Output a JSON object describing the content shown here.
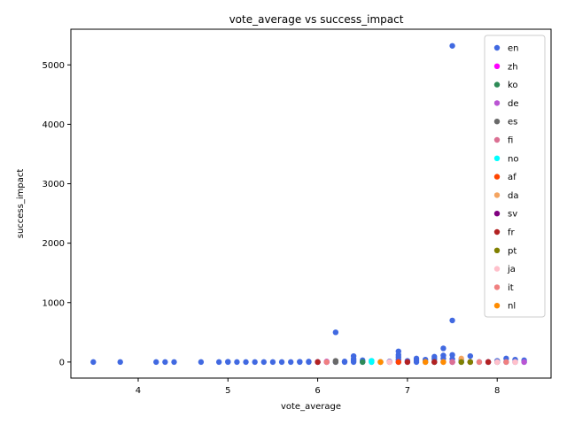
{
  "chart_data": {
    "type": "scatter",
    "title": "vote_average vs success_impact",
    "xlabel": "vote_average",
    "ylabel": "success_impact",
    "xlim": [
      3.25,
      8.6
    ],
    "ylim": [
      -270,
      5600
    ],
    "xticks": [
      4,
      5,
      6,
      7,
      8
    ],
    "yticks": [
      0,
      1000,
      2000,
      3000,
      4000,
      5000
    ],
    "grid": false,
    "legend_position": "top-right",
    "series": [
      {
        "name": "en",
        "color": "#4169e1",
        "points": [
          [
            3.5,
            0
          ],
          [
            3.8,
            0
          ],
          [
            4.2,
            0
          ],
          [
            4.3,
            0
          ],
          [
            4.4,
            0
          ],
          [
            4.7,
            0
          ],
          [
            4.9,
            0
          ],
          [
            5.0,
            0
          ],
          [
            5.0,
            5
          ],
          [
            5.1,
            0
          ],
          [
            5.2,
            0
          ],
          [
            5.3,
            0
          ],
          [
            5.4,
            0
          ],
          [
            5.5,
            0
          ],
          [
            5.6,
            0
          ],
          [
            5.7,
            0
          ],
          [
            5.8,
            0
          ],
          [
            5.8,
            5
          ],
          [
            5.9,
            0
          ],
          [
            5.9,
            8
          ],
          [
            6.0,
            0
          ],
          [
            6.1,
            0
          ],
          [
            6.2,
            0
          ],
          [
            6.2,
            500
          ],
          [
            6.3,
            0
          ],
          [
            6.3,
            10
          ],
          [
            6.4,
            0
          ],
          [
            6.4,
            20
          ],
          [
            6.4,
            50
          ],
          [
            6.4,
            100
          ],
          [
            6.5,
            0
          ],
          [
            6.5,
            15
          ],
          [
            6.5,
            30
          ],
          [
            6.6,
            0
          ],
          [
            6.6,
            20
          ],
          [
            6.7,
            0
          ],
          [
            6.8,
            0
          ],
          [
            6.8,
            10
          ],
          [
            6.9,
            0
          ],
          [
            6.9,
            40
          ],
          [
            6.9,
            80
          ],
          [
            6.9,
            120
          ],
          [
            6.9,
            180
          ],
          [
            7.0,
            0
          ],
          [
            7.0,
            20
          ],
          [
            7.1,
            0
          ],
          [
            7.1,
            30
          ],
          [
            7.1,
            60
          ],
          [
            7.2,
            0
          ],
          [
            7.2,
            40
          ],
          [
            7.3,
            0
          ],
          [
            7.3,
            50
          ],
          [
            7.3,
            90
          ],
          [
            7.4,
            0
          ],
          [
            7.4,
            60
          ],
          [
            7.4,
            110
          ],
          [
            7.4,
            230
          ],
          [
            7.5,
            0
          ],
          [
            7.5,
            50
          ],
          [
            7.5,
            120
          ],
          [
            7.5,
            700
          ],
          [
            7.5,
            5320
          ],
          [
            7.6,
            0
          ],
          [
            7.6,
            30
          ],
          [
            7.7,
            0
          ],
          [
            7.7,
            100
          ],
          [
            7.8,
            0
          ],
          [
            7.9,
            0
          ],
          [
            8.0,
            0
          ],
          [
            8.0,
            20
          ],
          [
            8.1,
            0
          ],
          [
            8.1,
            60
          ],
          [
            8.2,
            0
          ],
          [
            8.2,
            40
          ],
          [
            8.3,
            0
          ],
          [
            8.3,
            30
          ]
        ]
      },
      {
        "name": "zh",
        "color": "#ff00ff",
        "points": [
          [
            6.1,
            0
          ],
          [
            6.9,
            0
          ],
          [
            7.5,
            0
          ]
        ]
      },
      {
        "name": "ko",
        "color": "#2e8b57",
        "points": [
          [
            6.5,
            0
          ],
          [
            7.3,
            0
          ],
          [
            7.6,
            0
          ]
        ]
      },
      {
        "name": "de",
        "color": "#ba55d3",
        "points": [
          [
            6.1,
            0
          ],
          [
            6.1,
            10
          ],
          [
            7.0,
            0
          ],
          [
            7.5,
            0
          ],
          [
            8.3,
            0
          ]
        ]
      },
      {
        "name": "es",
        "color": "#696969",
        "points": [
          [
            6.2,
            0
          ],
          [
            6.2,
            20
          ],
          [
            6.7,
            0
          ],
          [
            7.3,
            0
          ],
          [
            7.7,
            0
          ],
          [
            8.0,
            0
          ]
        ]
      },
      {
        "name": "fi",
        "color": "#db7093",
        "points": [
          [
            6.8,
            0
          ],
          [
            7.5,
            0
          ],
          [
            8.2,
            0
          ]
        ]
      },
      {
        "name": "no",
        "color": "#00ffff",
        "points": [
          [
            6.6,
            0
          ],
          [
            6.6,
            20
          ]
        ]
      },
      {
        "name": "af",
        "color": "#ff4500",
        "points": [
          [
            6.9,
            0
          ]
        ]
      },
      {
        "name": "da",
        "color": "#f4a460",
        "points": [
          [
            6.7,
            0
          ],
          [
            7.2,
            0
          ],
          [
            7.6,
            60
          ]
        ]
      },
      {
        "name": "sv",
        "color": "#800080",
        "points": [
          [
            6.0,
            0
          ],
          [
            7.9,
            0
          ]
        ]
      },
      {
        "name": "fr",
        "color": "#b22222",
        "points": [
          [
            6.0,
            0
          ],
          [
            7.0,
            0
          ],
          [
            7.3,
            0
          ],
          [
            7.7,
            0
          ],
          [
            7.9,
            0
          ]
        ]
      },
      {
        "name": "pt",
        "color": "#808000",
        "points": [
          [
            7.6,
            0
          ],
          [
            7.7,
            0
          ]
        ]
      },
      {
        "name": "ja",
        "color": "#ffc0cb",
        "points": [
          [
            6.8,
            0
          ],
          [
            7.4,
            0
          ],
          [
            8.0,
            0
          ],
          [
            8.2,
            0
          ]
        ]
      },
      {
        "name": "it",
        "color": "#f08080",
        "points": [
          [
            6.1,
            0
          ],
          [
            7.8,
            0
          ],
          [
            8.1,
            0
          ]
        ]
      },
      {
        "name": "nl",
        "color": "#ff8c00",
        "points": [
          [
            6.7,
            0
          ],
          [
            7.2,
            0
          ],
          [
            7.4,
            0
          ]
        ]
      }
    ]
  }
}
